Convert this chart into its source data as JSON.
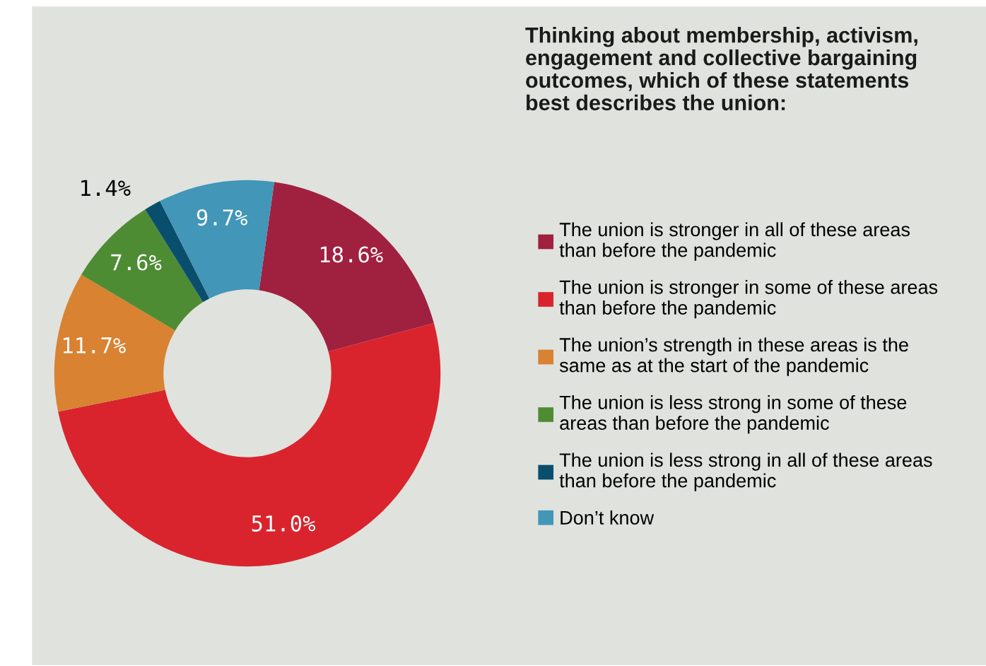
{
  "chart_data": {
    "type": "donut",
    "title": "Thinking about membership, activism,\nengagement and collective bargaining\noutcomes, which of these statements\nbest describes the union:",
    "categories": [
      "The union is stronger in all of these areas\nthan before the pandemic",
      "The union is stronger in some of these areas\nthan before the pandemic",
      "The union’s strength in these areas is the\nsame as at the start of the pandemic",
      "The union is less strong in some of these\nareas than before the pandemic",
      "The union is less strong in all of these areas\nthan before the pandemic",
      "Don’t know"
    ],
    "values": [
      18.6,
      51.0,
      11.7,
      7.6,
      1.4,
      9.7
    ],
    "colors": [
      "#a02040",
      "#d9242e",
      "#d88232",
      "#4e8c34",
      "#0a4e6e",
      "#4296b8"
    ],
    "value_labels": [
      "18.6%",
      "51.0%",
      "11.7%",
      "7.6%",
      "1.4%",
      "9.7%"
    ],
    "legend": "right"
  }
}
